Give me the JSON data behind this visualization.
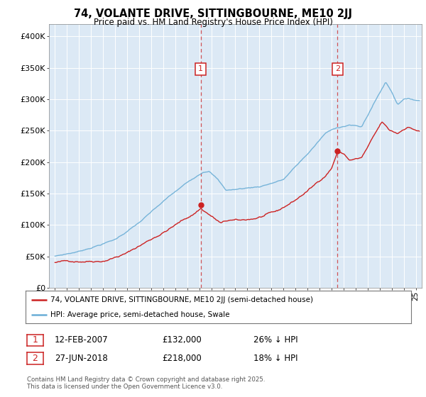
{
  "title": "74, VOLANTE DRIVE, SITTINGBOURNE, ME10 2JJ",
  "subtitle": "Price paid vs. HM Land Registry's House Price Index (HPI)",
  "hpi_color": "#6baed6",
  "price_color": "#cc2222",
  "background_color": "#dce9f5",
  "ylim": [
    0,
    420000
  ],
  "yticks": [
    0,
    50000,
    100000,
    150000,
    200000,
    250000,
    300000,
    350000,
    400000
  ],
  "ytick_labels": [
    "£0",
    "£50K",
    "£100K",
    "£150K",
    "£200K",
    "£250K",
    "£300K",
    "£350K",
    "£400K"
  ],
  "sale1_year": 2007.12,
  "sale1_price": 132000,
  "sale2_year": 2018.49,
  "sale2_price": 218000,
  "sale1_date": "12-FEB-2007",
  "sale1_amount": "£132,000",
  "sale1_pct": "26% ↓ HPI",
  "sale2_date": "27-JUN-2018",
  "sale2_amount": "£218,000",
  "sale2_pct": "18% ↓ HPI",
  "legend_line1": "74, VOLANTE DRIVE, SITTINGBOURNE, ME10 2JJ (semi-detached house)",
  "legend_line2": "HPI: Average price, semi-detached house, Swale",
  "footer": "Contains HM Land Registry data © Crown copyright and database right 2025.\nThis data is licensed under the Open Government Licence v3.0.",
  "xmin": 1994.5,
  "xmax": 2025.5
}
